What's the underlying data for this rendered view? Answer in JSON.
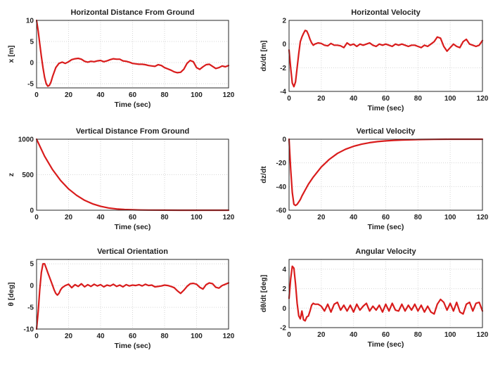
{
  "chart_data": [
    {
      "type": "line",
      "title": "Horizontal Distance From Ground",
      "xlabel": "Time (sec)",
      "ylabel": "x [m]",
      "xlim": [
        0,
        120
      ],
      "ylim": [
        -6,
        10
      ],
      "xticks": [
        0,
        20,
        40,
        60,
        80,
        100,
        120
      ],
      "yticks": [
        -5,
        0,
        5,
        10
      ],
      "grid": true,
      "series": [
        {
          "color": "#d91c1c",
          "x": [
            0,
            1,
            2,
            3,
            4,
            5,
            6,
            7,
            8,
            9,
            10,
            12,
            14,
            16,
            18,
            20,
            22,
            24,
            26,
            28,
            30,
            32,
            34,
            36,
            38,
            40,
            42,
            44,
            46,
            48,
            50,
            52,
            54,
            56,
            58,
            60,
            62,
            64,
            66,
            68,
            70,
            72,
            74,
            76,
            78,
            80,
            82,
            84,
            86,
            88,
            90,
            92,
            94,
            96,
            98,
            100,
            102,
            104,
            106,
            108,
            110,
            112,
            114,
            116,
            118,
            120
          ],
          "y": [
            10,
            7.5,
            4.5,
            1.5,
            -1.2,
            -3.5,
            -5,
            -5.6,
            -5.4,
            -4.6,
            -3.3,
            -1.2,
            -0.2,
            0.1,
            -0.2,
            0.2,
            0.7,
            0.9,
            1,
            0.8,
            0.3,
            0.1,
            0.3,
            0.2,
            0.4,
            0.5,
            0.2,
            0.4,
            0.7,
            0.9,
            0.8,
            0.8,
            0.4,
            0.3,
            0.1,
            -0.2,
            -0.3,
            -0.4,
            -0.4,
            -0.5,
            -0.7,
            -0.8,
            -0.9,
            -0.5,
            -0.7,
            -1.2,
            -1.5,
            -1.8,
            -2.2,
            -2.4,
            -2.3,
            -1.6,
            -0.2,
            0.5,
            0.2,
            -1.2,
            -1.6,
            -1,
            -0.5,
            -0.4,
            -0.9,
            -1.4,
            -1.2,
            -0.8,
            -1,
            -0.7
          ]
        }
      ]
    },
    {
      "type": "line",
      "title": "Horizontal Velocity",
      "xlabel": "Time (sec)",
      "ylabel": "dx/dt [m]",
      "xlim": [
        0,
        120
      ],
      "ylim": [
        -4,
        2
      ],
      "xticks": [
        0,
        20,
        40,
        60,
        80,
        100,
        120
      ],
      "yticks": [
        -4,
        -2,
        0,
        2
      ],
      "grid": true,
      "series": [
        {
          "color": "#d91c1c",
          "x": [
            0,
            1,
            2,
            3,
            4,
            5,
            6,
            7,
            8,
            9,
            10,
            11,
            12,
            13,
            14,
            15,
            16,
            18,
            20,
            22,
            24,
            26,
            28,
            30,
            32,
            34,
            36,
            38,
            40,
            42,
            44,
            46,
            48,
            50,
            52,
            54,
            56,
            58,
            60,
            62,
            64,
            66,
            68,
            70,
            72,
            74,
            76,
            78,
            80,
            82,
            84,
            86,
            88,
            90,
            92,
            94,
            96,
            98,
            100,
            102,
            104,
            106,
            108,
            110,
            112,
            114,
            116,
            118,
            120
          ],
          "y": [
            -0.5,
            -2,
            -3.3,
            -3.6,
            -3.2,
            -2,
            -0.8,
            0.2,
            0.6,
            0.9,
            1.15,
            1.1,
            0.8,
            0.4,
            0.1,
            -0.1,
            0,
            0.1,
            0.05,
            -0.1,
            -0.15,
            0.05,
            -0.1,
            -0.1,
            -0.15,
            -0.3,
            0.1,
            -0.1,
            0,
            -0.2,
            0,
            -0.1,
            0,
            0.1,
            -0.1,
            -0.2,
            0,
            -0.1,
            0,
            -0.1,
            -0.2,
            0,
            -0.1,
            0,
            -0.1,
            -0.2,
            -0.1,
            -0.1,
            -0.2,
            -0.3,
            -0.1,
            -0.2,
            0,
            0.2,
            0.6,
            0.5,
            -0.2,
            -0.6,
            -0.3,
            0,
            -0.2,
            -0.3,
            0.2,
            0.4,
            0,
            -0.1,
            -0.2,
            -0.1,
            0.3
          ]
        }
      ]
    },
    {
      "type": "line",
      "title": "Vertical Distance From Ground",
      "xlabel": "Time (sec)",
      "ylabel": "z",
      "xlim": [
        0,
        120
      ],
      "ylim": [
        0,
        1000
      ],
      "xticks": [
        0,
        20,
        40,
        60,
        80,
        100,
        120
      ],
      "yticks": [
        0,
        500,
        1000
      ],
      "grid": true,
      "series": [
        {
          "color": "#d91c1c",
          "x": [
            0,
            5,
            10,
            15,
            20,
            25,
            30,
            35,
            40,
            45,
            50,
            55,
            60,
            65,
            70,
            80,
            90,
            100,
            110,
            120
          ],
          "y": [
            1000,
            760,
            570,
            420,
            300,
            210,
            140,
            90,
            55,
            32,
            18,
            10,
            6,
            3,
            2,
            1,
            0,
            0,
            0,
            0
          ]
        }
      ]
    },
    {
      "type": "line",
      "title": "Vertical Velocity",
      "xlabel": "Time (sec)",
      "ylabel": "dz/dt",
      "xlim": [
        0,
        120
      ],
      "ylim": [
        -60,
        0
      ],
      "xticks": [
        0,
        20,
        40,
        60,
        80,
        100,
        120
      ],
      "yticks": [
        -60,
        -40,
        -20,
        0
      ],
      "grid": true,
      "series": [
        {
          "color": "#d91c1c",
          "x": [
            0,
            1,
            2,
            3,
            4,
            5,
            6,
            7,
            8,
            10,
            12,
            15,
            20,
            25,
            30,
            35,
            40,
            45,
            50,
            55,
            60,
            65,
            70,
            80,
            90,
            100,
            110,
            120
          ],
          "y": [
            0,
            -25,
            -45,
            -55,
            -56,
            -55,
            -53,
            -51,
            -48,
            -43,
            -38,
            -32,
            -23.5,
            -17,
            -12,
            -8.5,
            -6,
            -4.2,
            -2.9,
            -2,
            -1.4,
            -1,
            -0.7,
            -0.3,
            -0.1,
            0,
            0,
            0
          ]
        }
      ]
    },
    {
      "type": "line",
      "title": "Vertical Orientation",
      "xlabel": "Time (sec)",
      "ylabel": "θ [deg]",
      "xlim": [
        0,
        120
      ],
      "ylim": [
        -10,
        6
      ],
      "xticks": [
        0,
        20,
        40,
        60,
        80,
        100,
        120
      ],
      "yticks": [
        -10,
        -5,
        0,
        5
      ],
      "grid": true,
      "series": [
        {
          "color": "#d91c1c",
          "x": [
            0,
            1,
            2,
            3,
            4,
            5,
            6,
            7,
            8,
            9,
            10,
            11,
            12,
            13,
            14,
            15,
            16,
            18,
            20,
            22,
            24,
            26,
            28,
            30,
            32,
            34,
            36,
            38,
            40,
            42,
            44,
            46,
            48,
            50,
            52,
            54,
            56,
            58,
            60,
            62,
            64,
            66,
            68,
            70,
            72,
            74,
            76,
            78,
            80,
            82,
            84,
            86,
            88,
            90,
            92,
            94,
            96,
            98,
            100,
            102,
            104,
            106,
            108,
            110,
            112,
            114,
            116,
            118,
            120
          ],
          "y": [
            -10,
            -6,
            -1,
            3,
            5,
            5,
            4,
            3,
            2,
            1,
            0,
            -1,
            -1.8,
            -2.2,
            -1.8,
            -1,
            -0.5,
            0,
            0.3,
            -0.5,
            0.2,
            -0.2,
            0.4,
            -0.3,
            0.2,
            -0.2,
            0.3,
            -0.1,
            0.2,
            -0.3,
            0.1,
            -0.1,
            0.3,
            -0.2,
            0.1,
            -0.3,
            0.2,
            -0.1,
            0.1,
            0,
            0.2,
            -0.1,
            0.3,
            0,
            0.1,
            -0.3,
            -0.2,
            -0.1,
            0.1,
            0,
            -0.2,
            -0.5,
            -1.2,
            -1.8,
            -1.1,
            -0.2,
            0.4,
            0.5,
            0.3,
            -0.4,
            -0.8,
            0.2,
            0.6,
            0.4,
            -0.4,
            -0.6,
            0,
            0.3,
            0.6
          ]
        }
      ]
    },
    {
      "type": "line",
      "title": "Angular Velocity",
      "xlabel": "Time (sec)",
      "ylabel": "dθ/dt [deg]",
      "xlim": [
        0,
        120
      ],
      "ylim": [
        -2,
        5
      ],
      "xticks": [
        0,
        20,
        40,
        60,
        80,
        100,
        120
      ],
      "yticks": [
        -2,
        0,
        2,
        4
      ],
      "grid": true,
      "series": [
        {
          "color": "#d91c1c",
          "x": [
            0,
            1,
            2,
            3,
            4,
            5,
            6,
            7,
            8,
            9,
            10,
            11,
            12,
            13,
            14,
            15,
            16,
            18,
            20,
            22,
            24,
            26,
            28,
            30,
            32,
            34,
            36,
            38,
            40,
            42,
            44,
            46,
            48,
            50,
            52,
            54,
            56,
            58,
            60,
            62,
            64,
            66,
            68,
            70,
            72,
            74,
            76,
            78,
            80,
            82,
            84,
            86,
            88,
            90,
            92,
            94,
            96,
            98,
            100,
            102,
            104,
            106,
            108,
            110,
            112,
            114,
            116,
            118,
            120
          ],
          "y": [
            1,
            3,
            4.3,
            4.1,
            2.5,
            0.5,
            -0.8,
            -1.1,
            -0.3,
            -1.2,
            -1.3,
            -0.9,
            -0.8,
            -0.3,
            0.3,
            0.5,
            0.4,
            0.4,
            0.2,
            -0.3,
            0.4,
            -0.4,
            0.4,
            0.6,
            -0.2,
            0.3,
            -0.3,
            0.3,
            -0.4,
            0.4,
            -0.2,
            0.2,
            0.5,
            -0.3,
            0.2,
            -0.2,
            0.3,
            -0.4,
            0.4,
            -0.3,
            0.5,
            -0.2,
            -0.3,
            0.4,
            -0.3,
            0.3,
            -0.2,
            0.4,
            -0.3,
            0.3,
            -0.4,
            0.2,
            -0.4,
            -0.6,
            0.4,
            0.9,
            0.6,
            -0.2,
            0.5,
            -0.3,
            0.6,
            -0.4,
            -0.6,
            0.4,
            0.6,
            -0.3,
            0.5,
            0.6,
            -0.3
          ]
        }
      ]
    }
  ]
}
